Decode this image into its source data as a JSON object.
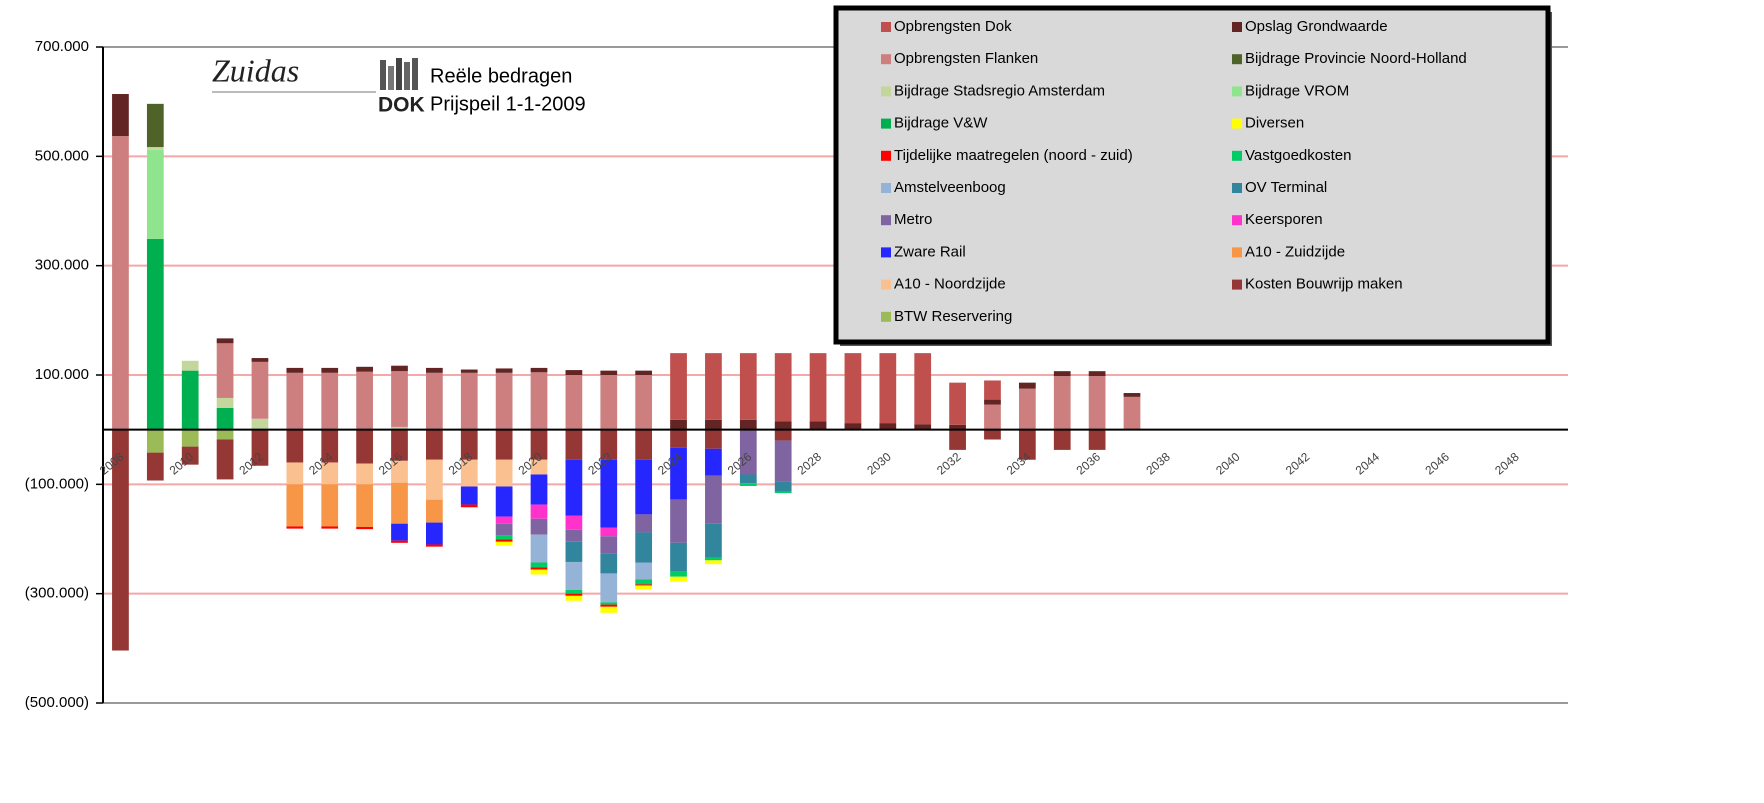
{
  "chart_data": {
    "type": "stacked_bar",
    "logo_text": [
      "Zuidas",
      "DOK"
    ],
    "annotations": [
      "Reële bedragen",
      "Prijspeil 1-1-2009"
    ],
    "categories": [
      "2008",
      null,
      "2010",
      null,
      "2012",
      null,
      "2014",
      null,
      "2016",
      null,
      "2018",
      null,
      "2020",
      null,
      "2022",
      null,
      "2024",
      null,
      "2026",
      null,
      "2028",
      null,
      "2030",
      null,
      "2032",
      null,
      "2034",
      null,
      "2036",
      null,
      "2038",
      null,
      "2040",
      null,
      "2042",
      null,
      "2044",
      null,
      "2046",
      null,
      "2048",
      null
    ],
    "ylim": [
      -500000,
      700000
    ],
    "yticks": [
      {
        "value": -500000,
        "label": "(500.000)"
      },
      {
        "value": -300000,
        "label": "(300.000)"
      },
      {
        "value": -100000,
        "label": "(100.000)"
      },
      {
        "value": 100000,
        "label": "100.000"
      },
      {
        "value": 300000,
        "label": "300.000"
      },
      {
        "value": 500000,
        "label": "500.000"
      },
      {
        "value": 700000,
        "label": "700.000"
      }
    ],
    "grid": true,
    "legend": "top-right",
    "series": [
      {
        "name": "Opbrengsten Dok",
        "color": "#c0504d",
        "values": [
          0,
          0,
          0,
          0,
          0,
          0,
          0,
          0,
          0,
          0,
          0,
          0,
          0,
          0,
          0,
          0,
          122000,
          122000,
          122000,
          125000,
          125000,
          128000,
          128000,
          130000,
          77000,
          35000,
          0,
          0,
          0,
          0,
          0,
          0,
          0,
          0,
          0,
          0,
          0,
          0,
          0,
          0,
          0,
          0
        ]
      },
      {
        "name": "Opslag Grondwaarde",
        "color": "#632523",
        "values": [
          77000,
          0,
          0,
          9000,
          7000,
          9000,
          9000,
          9000,
          10000,
          9000,
          6000,
          8000,
          8000,
          9000,
          8000,
          8000,
          18000,
          18000,
          18000,
          15000,
          15000,
          12000,
          12000,
          10000,
          9000,
          9000,
          11000,
          9000,
          9000,
          7000,
          0,
          0,
          0,
          0,
          0,
          0,
          0,
          0,
          0,
          0,
          0,
          0
        ]
      },
      {
        "name": "Opbrengsten Flanken",
        "color": "#cd7f7f",
        "values": [
          537000,
          0,
          0,
          100000,
          104000,
          104000,
          104000,
          106000,
          102000,
          104000,
          104000,
          104000,
          105000,
          100000,
          100000,
          100000,
          0,
          0,
          0,
          0,
          0,
          0,
          0,
          0,
          0,
          46000,
          75000,
          98000,
          98000,
          60000,
          0,
          0,
          0,
          0,
          0,
          0,
          0,
          0,
          0,
          0,
          0,
          0
        ]
      },
      {
        "name": "Bijdrage Provincie Noord-Holland",
        "color": "#4f6228",
        "values": [
          0,
          79000,
          0,
          0,
          0,
          0,
          0,
          0,
          0,
          0,
          0,
          0,
          0,
          0,
          0,
          0,
          0,
          0,
          0,
          0,
          0,
          0,
          0,
          0,
          0,
          0,
          0,
          0,
          0,
          0,
          0,
          0,
          0,
          0,
          0,
          0,
          0,
          0,
          0,
          0,
          0,
          0
        ]
      },
      {
        "name": "Bijdrage Stadsregio Amsterdam",
        "color": "#c3d69b",
        "values": [
          0,
          5000,
          18000,
          18000,
          20000,
          0,
          0,
          0,
          5000,
          0,
          0,
          0,
          0,
          0,
          0,
          0,
          0,
          0,
          0,
          0,
          0,
          0,
          0,
          0,
          0,
          0,
          0,
          0,
          0,
          0,
          0,
          0,
          0,
          0,
          0,
          0,
          0,
          0,
          0,
          0,
          0,
          0
        ]
      },
      {
        "name": "Bijdrage VROM",
        "color": "#8ee58e",
        "values": [
          0,
          163000,
          0,
          0,
          0,
          0,
          0,
          0,
          0,
          0,
          0,
          0,
          0,
          0,
          0,
          0,
          0,
          0,
          0,
          0,
          0,
          0,
          0,
          0,
          0,
          0,
          0,
          0,
          0,
          0,
          0,
          0,
          0,
          0,
          0,
          0,
          0,
          0,
          0,
          0,
          0,
          0
        ]
      },
      {
        "name": "Bijdrage V&W",
        "color": "#00b050",
        "values": [
          0,
          349000,
          108000,
          40000,
          0,
          0,
          0,
          0,
          0,
          0,
          0,
          0,
          0,
          0,
          0,
          0,
          0,
          0,
          0,
          0,
          0,
          0,
          0,
          0,
          0,
          0,
          0,
          0,
          0,
          0,
          0,
          0,
          0,
          0,
          0,
          0,
          0,
          0,
          0,
          0,
          0,
          0
        ]
      },
      {
        "name": "Diversen",
        "color": "#ffff00",
        "values": [
          0,
          0,
          0,
          0,
          0,
          0,
          0,
          0,
          0,
          0,
          0,
          -7000,
          -9000,
          -9000,
          -11000,
          -7000,
          -9000,
          -7000,
          0,
          0,
          0,
          0,
          0,
          0,
          0,
          0,
          0,
          0,
          0,
          0,
          0,
          0,
          0,
          0,
          0,
          0,
          0,
          0,
          0,
          0,
          0,
          0
        ]
      },
      {
        "name": "Tijdelijke maatregelen (noord - zuid)",
        "color": "#ff0000",
        "values": [
          0,
          0,
          0,
          0,
          0,
          -4000,
          -4000,
          -4000,
          -4000,
          -4000,
          -5000,
          -4000,
          -4000,
          -4000,
          -4000,
          -2000,
          0,
          0,
          0,
          0,
          0,
          0,
          0,
          0,
          0,
          0,
          0,
          0,
          0,
          0,
          0,
          0,
          0,
          0,
          0,
          0,
          0,
          0,
          0,
          0,
          0,
          0
        ]
      },
      {
        "name": "Vastgoedkosten",
        "color": "#00cc66",
        "values": [
          0,
          0,
          0,
          0,
          0,
          0,
          0,
          0,
          0,
          0,
          0,
          -7000,
          -9000,
          -7000,
          -4000,
          -9000,
          -9000,
          -5000,
          -5000,
          -3000,
          0,
          0,
          0,
          0,
          0,
          0,
          0,
          0,
          0,
          0,
          0,
          0,
          0,
          0,
          0,
          0,
          0,
          0,
          0,
          0,
          0,
          0
        ]
      },
      {
        "name": "Amstelveenboog",
        "color": "#95b3d7",
        "values": [
          0,
          0,
          0,
          0,
          0,
          0,
          0,
          0,
          0,
          0,
          0,
          0,
          -51000,
          -51000,
          -53000,
          -31000,
          0,
          0,
          0,
          0,
          0,
          0,
          0,
          0,
          0,
          0,
          0,
          0,
          0,
          0,
          0,
          0,
          0,
          0,
          0,
          0,
          0,
          0,
          0,
          0,
          0,
          0
        ]
      },
      {
        "name": "OV Terminal",
        "color": "#31859c",
        "values": [
          0,
          0,
          0,
          0,
          0,
          0,
          0,
          0,
          0,
          0,
          0,
          0,
          0,
          -37000,
          -37000,
          -55000,
          -53000,
          -62000,
          -16000,
          -18000,
          0,
          0,
          0,
          0,
          0,
          0,
          0,
          0,
          0,
          0,
          0,
          0,
          0,
          0,
          0,
          0,
          0,
          0,
          0,
          0,
          0,
          0
        ]
      },
      {
        "name": "Metro",
        "color": "#8064a2",
        "values": [
          0,
          0,
          0,
          0,
          0,
          0,
          0,
          0,
          0,
          0,
          0,
          -22000,
          -29000,
          -22000,
          -31000,
          -33000,
          -79000,
          -88000,
          -82000,
          -75000,
          0,
          0,
          0,
          0,
          0,
          0,
          0,
          0,
          0,
          0,
          0,
          0,
          0,
          0,
          0,
          0,
          0,
          0,
          0,
          0,
          0,
          0
        ]
      },
      {
        "name": "Keersporen",
        "color": "#ff33cc",
        "values": [
          0,
          0,
          0,
          0,
          0,
          0,
          0,
          0,
          0,
          0,
          0,
          -13000,
          -26000,
          -26000,
          -16000,
          0,
          0,
          0,
          0,
          0,
          0,
          0,
          0,
          0,
          0,
          0,
          0,
          0,
          0,
          0,
          0,
          0,
          0,
          0,
          0,
          0,
          0,
          0,
          0,
          0,
          0,
          0
        ]
      },
      {
        "name": "Zware Rail",
        "color": "#2626ff",
        "values": [
          0,
          0,
          0,
          0,
          0,
          0,
          0,
          0,
          -31000,
          -40000,
          -33000,
          -55000,
          -55000,
          -102000,
          -124000,
          -100000,
          -95000,
          -49000,
          0,
          0,
          0,
          0,
          0,
          0,
          0,
          0,
          0,
          0,
          0,
          0,
          0,
          0,
          0,
          0,
          0,
          0,
          0,
          0,
          0,
          0,
          0,
          0
        ]
      },
      {
        "name": "A10 - Zuidzijde",
        "color": "#f79646",
        "values": [
          0,
          0,
          0,
          0,
          0,
          -77000,
          -77000,
          -78000,
          -75000,
          -42000,
          0,
          0,
          0,
          0,
          0,
          0,
          0,
          0,
          0,
          0,
          0,
          0,
          0,
          0,
          0,
          0,
          0,
          0,
          0,
          0,
          0,
          0,
          0,
          0,
          0,
          0,
          0,
          0,
          0,
          0,
          0,
          0
        ]
      },
      {
        "name": "A10 - Noordzijde",
        "color": "#fac090",
        "values": [
          0,
          0,
          0,
          0,
          0,
          -40000,
          -40000,
          -38000,
          -40000,
          -73000,
          -49000,
          -49000,
          -27000,
          0,
          0,
          0,
          0,
          0,
          0,
          0,
          0,
          0,
          0,
          0,
          0,
          0,
          0,
          0,
          0,
          0,
          0,
          0,
          0,
          0,
          0,
          0,
          0,
          0,
          0,
          0,
          0,
          0
        ]
      },
      {
        "name": "Kosten Bouwrijp maken",
        "color": "#953735",
        "values": [
          -404000,
          -51000,
          -33000,
          -73000,
          -66000,
          -60000,
          -60000,
          -62000,
          -57000,
          -55000,
          -55000,
          -55000,
          -55000,
          -55000,
          -55000,
          -55000,
          -33000,
          -35000,
          0,
          -20000,
          0,
          0,
          0,
          0,
          -37000,
          -18000,
          -55000,
          -37000,
          -37000,
          0,
          0,
          0,
          0,
          0,
          0,
          0,
          0,
          0,
          0,
          0,
          0,
          0
        ]
      },
      {
        "name": "BTW Reservering",
        "color": "#9bbb59",
        "values": [
          0,
          -42000,
          -31000,
          -18000,
          0,
          0,
          0,
          0,
          0,
          0,
          0,
          0,
          0,
          0,
          0,
          0,
          0,
          0,
          0,
          0,
          0,
          0,
          0,
          0,
          0,
          0,
          0,
          0,
          0,
          0,
          0,
          0,
          0,
          0,
          0,
          0,
          0,
          0,
          0,
          0,
          0,
          0
        ]
      }
    ]
  }
}
